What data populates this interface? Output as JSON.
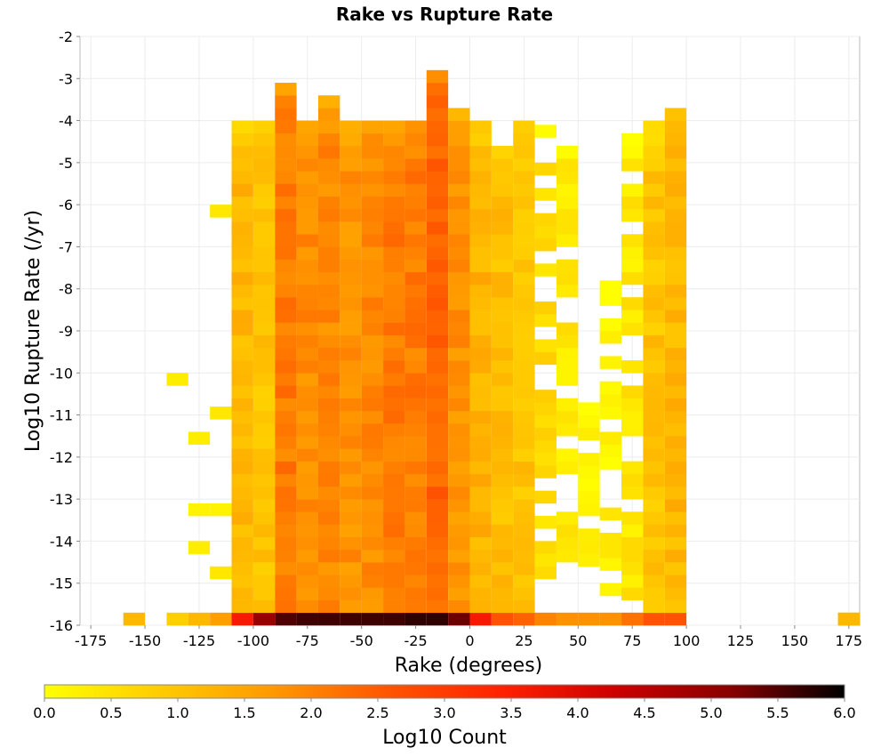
{
  "chart_data": {
    "type": "heatmap",
    "title": "Rake vs Rupture Rate",
    "xlabel": "Rake (degrees)",
    "ylabel": "Log10 Rupture Rate (/yr)",
    "xlim": [
      -180,
      180
    ],
    "ylim": [
      -16,
      -2
    ],
    "x_ticks": [
      -175,
      -150,
      -125,
      -100,
      -75,
      -50,
      -25,
      0,
      25,
      50,
      75,
      100,
      125,
      150,
      175
    ],
    "y_ticks": [
      -2,
      -3,
      -4,
      -5,
      -6,
      -7,
      -8,
      -9,
      -10,
      -11,
      -12,
      -13,
      -14,
      -15,
      -16
    ],
    "bin_width_x": 10,
    "bin_height_y": 0.3,
    "grid": true,
    "colorbar": {
      "label": "Log10 Count",
      "min": 0,
      "max": 6,
      "ticks": [
        "0.0",
        "0.5",
        "1.0",
        "1.5",
        "2.0",
        "2.5",
        "3.0",
        "3.5",
        "4.0",
        "4.5",
        "5.0",
        "5.5",
        "6.0"
      ],
      "colors": [
        "#ffff00",
        "#ffcc00",
        "#ff9900",
        "#ff5500",
        "#ff2200",
        "#cc0000",
        "#880000",
        "#000000"
      ]
    },
    "cells": {
      "x_centers": [
        -155,
        -135,
        -125,
        -115,
        -105,
        -95,
        -85,
        -75,
        -65,
        -55,
        -45,
        -35,
        -25,
        -15,
        -5,
        5,
        15,
        25,
        35,
        45,
        55,
        65,
        75,
        85,
        95,
        175
      ],
      "bottom_row_log10_count": [
        1.2,
        0.8,
        1.2,
        1.6,
        3.6,
        4.9,
        5.5,
        5.6,
        5.6,
        5.6,
        5.6,
        5.6,
        5.7,
        5.7,
        5.3,
        3.6,
        2.6,
        2.4,
        2.0,
        1.8,
        1.8,
        1.8,
        2.2,
        2.6,
        2.6,
        1.2
      ],
      "columns": [
        {
          "x": -135,
          "bins": [
            [
              -10.3,
              0.3
            ]
          ]
        },
        {
          "x": -125,
          "bins": [
            [
              -11.7,
              0.3
            ],
            [
              -13.4,
              0.2
            ],
            [
              -14.3,
              0.3
            ]
          ]
        },
        {
          "x": -115,
          "bins": [
            [
              -6.3,
              0.4
            ],
            [
              -11.1,
              0.4
            ],
            [
              -13.4,
              0.2
            ],
            [
              -14.9,
              0.4
            ]
          ]
        },
        {
          "x": -105,
          "column_span": [
            -16,
            -3.9
          ],
          "typical": 1.2
        },
        {
          "x": -95,
          "column_span": [
            -16,
            -3.9
          ],
          "typical": 1.0
        },
        {
          "x": -85,
          "column_span": [
            -16,
            -3.0
          ],
          "typical": 2.1
        },
        {
          "x": -75,
          "column_span": [
            -16,
            -3.9
          ],
          "typical": 1.9
        },
        {
          "x": -65,
          "column_span": [
            -16,
            -3.3
          ],
          "typical": 1.9
        },
        {
          "x": -55,
          "column_span": [
            -16,
            -3.9
          ],
          "typical": 1.8
        },
        {
          "x": -45,
          "column_span": [
            -16,
            -3.9
          ],
          "typical": 1.9
        },
        {
          "x": -35,
          "column_span": [
            -16,
            -4.0
          ],
          "typical": 2.1
        },
        {
          "x": -25,
          "column_span": [
            -16,
            -3.9
          ],
          "typical": 2.1
        },
        {
          "x": -15,
          "column_span": [
            -16,
            -2.7
          ],
          "typical": 2.4
        },
        {
          "x": -5,
          "column_span": [
            -16,
            -3.6
          ],
          "typical": 1.8
        },
        {
          "x": 5,
          "column_span": [
            -16,
            -3.9
          ],
          "typical": 1.3
        },
        {
          "x": 15,
          "column_span": [
            -16,
            -4.5
          ],
          "typical": 1.1
        },
        {
          "x": 25,
          "column_span": [
            -16,
            -3.9
          ],
          "typical": 1.0
        },
        {
          "x": 35,
          "column_span": [
            -15.2,
            -3.9
          ],
          "typical": 0.6
        },
        {
          "x": 45,
          "column_span": [
            -14.8,
            -4.2
          ],
          "typical": 0.4
        },
        {
          "x": 55,
          "column_span": [
            -15.2,
            -10.6
          ],
          "typical": 0.2
        },
        {
          "x": 65,
          "column_span": [
            -15.6,
            -7.4
          ],
          "typical": 0.2
        },
        {
          "x": 75,
          "column_span": [
            -16,
            -4.2
          ],
          "typical": 0.4
        },
        {
          "x": 85,
          "column_span": [
            -16,
            -3.9
          ],
          "typical": 1.0
        },
        {
          "x": 95,
          "column_span": [
            -16,
            -3.6
          ],
          "typical": 1.2
        }
      ]
    }
  }
}
